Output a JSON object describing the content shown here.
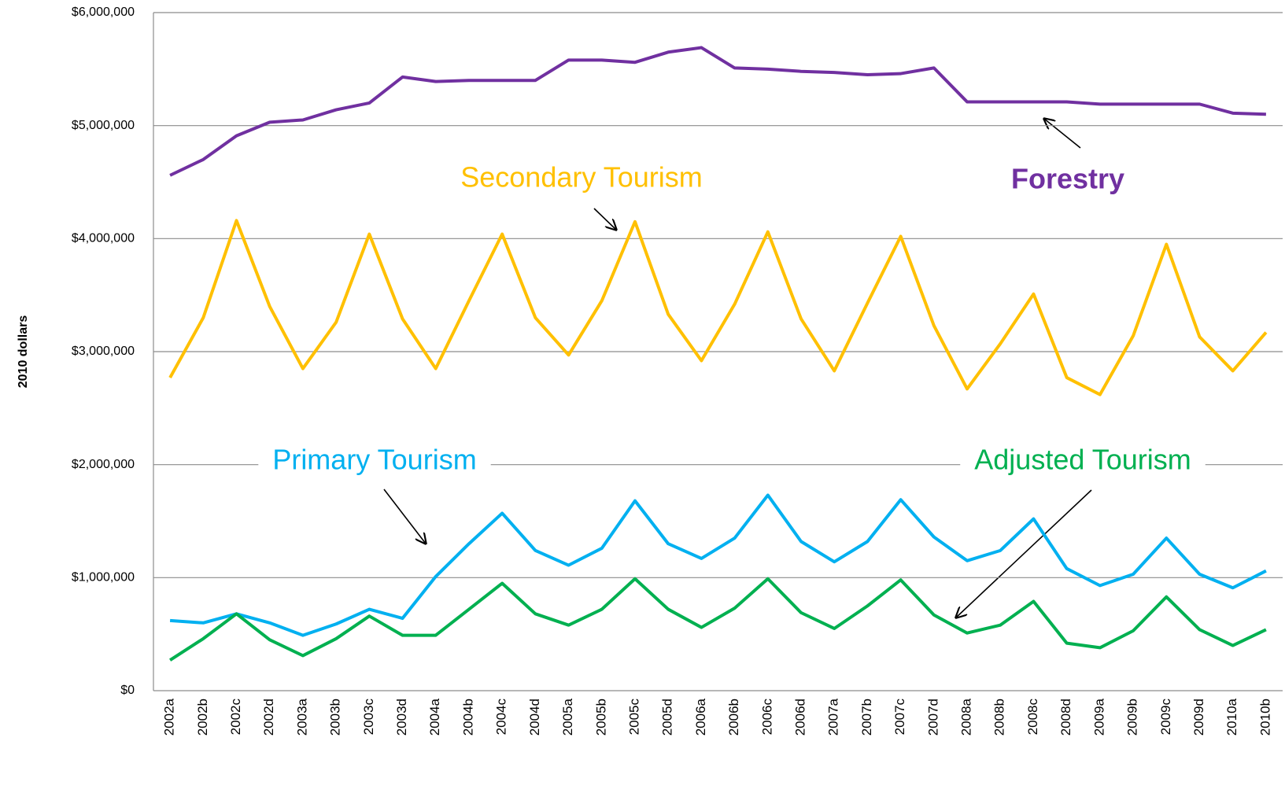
{
  "chart_data": {
    "type": "line",
    "y_label": "2010 dollars",
    "categories": [
      "2002a",
      "2002b",
      "2002c",
      "2002d",
      "2003a",
      "2003b",
      "2003c",
      "2003d",
      "2004a",
      "2004b",
      "2004c",
      "2004d",
      "2005a",
      "2005b",
      "2005c",
      "2005d",
      "2006a",
      "2006b",
      "2006c",
      "2006d",
      "2007a",
      "2007b",
      "2007c",
      "2007d",
      "2008a",
      "2008b",
      "2008c",
      "2008d",
      "2009a",
      "2009b",
      "2009c",
      "2009d",
      "2010a",
      "2010b"
    ],
    "series": [
      {
        "name": "Forestry",
        "color": "#7030a0",
        "values": [
          4560000,
          4700000,
          4910000,
          5030000,
          5050000,
          5140000,
          5200000,
          5430000,
          5390000,
          5400000,
          5400000,
          5400000,
          5580000,
          5580000,
          5560000,
          5650000,
          5690000,
          5510000,
          5500000,
          5480000,
          5470000,
          5450000,
          5460000,
          5510000,
          5210000,
          5210000,
          5210000,
          5210000,
          5190000,
          5190000,
          5190000,
          5190000,
          5110000,
          5100000
        ]
      },
      {
        "name": "Secondary Tourism",
        "color": "#ffc000",
        "values": [
          2770000,
          3300000,
          4160000,
          3400000,
          2850000,
          3260000,
          4040000,
          3290000,
          2850000,
          3450000,
          4040000,
          3300000,
          2970000,
          3450000,
          4150000,
          3330000,
          2920000,
          3420000,
          4060000,
          3290000,
          2830000,
          3430000,
          4020000,
          3230000,
          2670000,
          3070000,
          3510000,
          2770000,
          2620000,
          3140000,
          3950000,
          3130000,
          2830000,
          3170000
        ]
      },
      {
        "name": "Primary Tourism",
        "color": "#00b0f0",
        "values": [
          620000,
          600000,
          680000,
          600000,
          490000,
          590000,
          720000,
          640000,
          1010000,
          1300000,
          1570000,
          1240000,
          1110000,
          1260000,
          1680000,
          1300000,
          1170000,
          1350000,
          1730000,
          1320000,
          1140000,
          1320000,
          1690000,
          1360000,
          1150000,
          1240000,
          1520000,
          1080000,
          930000,
          1030000,
          1350000,
          1030000,
          910000,
          1060000
        ]
      },
      {
        "name": "Adjusted Tourism",
        "color": "#00b050",
        "values": [
          270000,
          460000,
          680000,
          450000,
          310000,
          460000,
          660000,
          490000,
          490000,
          720000,
          950000,
          680000,
          580000,
          720000,
          990000,
          720000,
          560000,
          730000,
          990000,
          690000,
          550000,
          750000,
          980000,
          670000,
          510000,
          580000,
          790000,
          420000,
          380000,
          530000,
          830000,
          540000,
          400000,
          540000
        ]
      }
    ],
    "ylim": [
      0,
      6000000
    ],
    "yticks": [
      {
        "value": 0,
        "label": "$0"
      },
      {
        "value": 1000000,
        "label": "$1,000,000"
      },
      {
        "value": 2000000,
        "label": "$2,000,000"
      },
      {
        "value": 3000000,
        "label": "$3,000,000"
      },
      {
        "value": 4000000,
        "label": "$4,000,000"
      },
      {
        "value": 5000000,
        "label": "$5,000,000"
      },
      {
        "value": 6000000,
        "label": "$6,000,000"
      }
    ],
    "grid": true
  }
}
